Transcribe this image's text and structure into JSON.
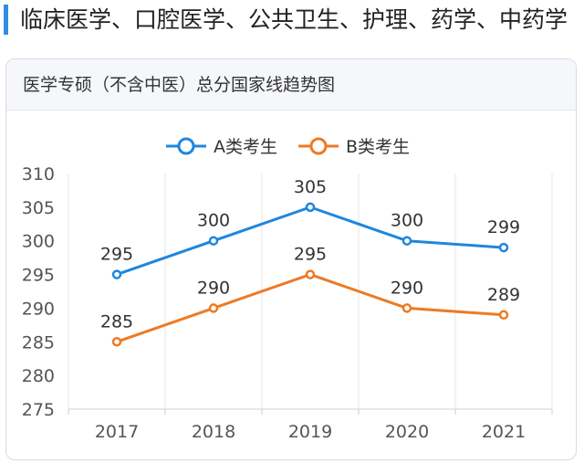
{
  "heading": "临床医学、口腔医学、公共卫生、护理、药学、中药学",
  "card_title": "医学专硕（不含中医）总分国家线趋势图",
  "colors": {
    "accent": "#2f8ee0",
    "series_a": "#1f86de",
    "series_b": "#ee7a24"
  },
  "chart_data": {
    "type": "line",
    "title": "",
    "xlabel": "",
    "ylabel": "",
    "x": [
      "2017",
      "2018",
      "2019",
      "2020",
      "2021"
    ],
    "ylim": [
      275,
      310
    ],
    "yticks": [
      275,
      280,
      285,
      290,
      295,
      300,
      305,
      310
    ],
    "grid": "vertical",
    "legend": "top-center",
    "series": [
      {
        "name": "A类考生",
        "values": [
          295,
          300,
          305,
          300,
          299
        ],
        "color": "#1f86de"
      },
      {
        "name": "B类考生",
        "values": [
          285,
          290,
          295,
          290,
          289
        ],
        "color": "#ee7a24"
      }
    ]
  }
}
